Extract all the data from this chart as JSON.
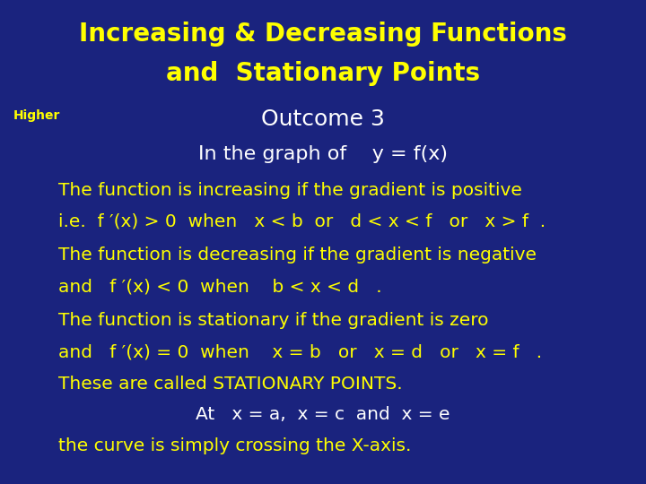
{
  "bg_color": "#1a237e",
  "text_color": "#ffff00",
  "white_color": "#ffffff",
  "title_line1": "Increasing & Decreasing Functions",
  "title_line2": "and  Stationary Points",
  "higher_label": "Higher",
  "outcome": "Outcome 3",
  "graph_of": "In the graph of    y = f(x)",
  "line1": "The function is increasing if the gradient is positive",
  "line2": "i.e.  f ′(x) > 0  when   x < b  or   d < x < f   or   x > f  .",
  "line3": "The function is decreasing if the gradient is negative",
  "line4": "and   f ′(x) < 0  when    b < x < d   .",
  "line5": "The function is stationary if the gradient is zero",
  "line6": "and   f ′(x) = 0  when    x = b   or   x = d   or   x = f   .",
  "line7": "These are called STATIONARY POINTS.",
  "line8": "At   x = a,  x = c  and  x = e",
  "line9": "the curve is simply crossing the X-axis.",
  "title_fontsize": 20,
  "higher_fontsize": 10,
  "outcome_fontsize": 18,
  "graph_fontsize": 16,
  "body_fontsize": 14.5
}
